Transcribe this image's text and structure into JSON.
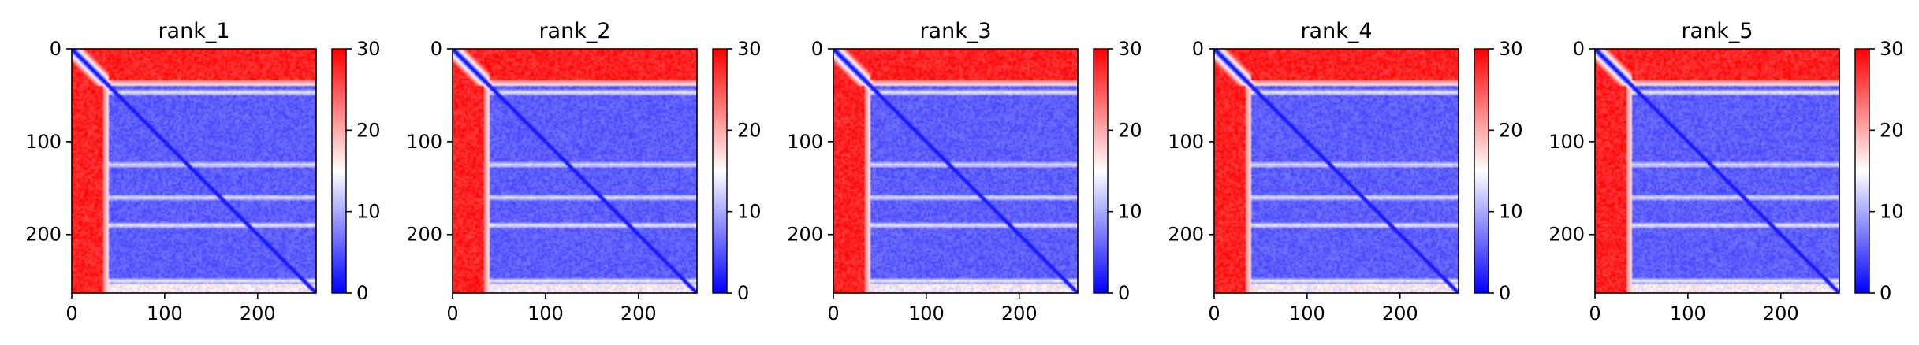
{
  "chart_data": [
    {
      "type": "heatmap",
      "title": "rank_1",
      "x_ticks": [
        0,
        100,
        200
      ],
      "y_ticks": [
        0,
        100,
        200
      ],
      "xlim": [
        0,
        263
      ],
      "ylim": [
        263,
        0
      ],
      "grid": false,
      "colorbar": {
        "min": 0,
        "max": 30,
        "ticks": [
          0,
          10,
          20,
          30
        ],
        "colormap": [
          "#0000ff",
          "#ffffff",
          "#ff0000"
        ]
      },
      "regions": {
        "disordered_end": 40,
        "structured_value": 4,
        "disordered_value": 30,
        "interstripe_rows": [
          47,
          125,
          160,
          190,
          250
        ]
      }
    },
    {
      "type": "heatmap",
      "title": "rank_2",
      "x_ticks": [
        0,
        100,
        200
      ],
      "y_ticks": [
        0,
        100,
        200
      ],
      "xlim": [
        0,
        263
      ],
      "ylim": [
        263,
        0
      ],
      "grid": false,
      "colorbar": {
        "min": 0,
        "max": 30,
        "ticks": [
          0,
          10,
          20,
          30
        ],
        "colormap": [
          "#0000ff",
          "#ffffff",
          "#ff0000"
        ]
      },
      "regions": {
        "disordered_end": 40,
        "structured_value": 4,
        "disordered_value": 30,
        "interstripe_rows": [
          47,
          125,
          160,
          190,
          250
        ]
      }
    },
    {
      "type": "heatmap",
      "title": "rank_3",
      "x_ticks": [
        0,
        100,
        200
      ],
      "y_ticks": [
        0,
        100,
        200
      ],
      "xlim": [
        0,
        263
      ],
      "ylim": [
        263,
        0
      ],
      "grid": false,
      "colorbar": {
        "min": 0,
        "max": 30,
        "ticks": [
          0,
          10,
          20,
          30
        ],
        "colormap": [
          "#0000ff",
          "#ffffff",
          "#ff0000"
        ]
      },
      "regions": {
        "disordered_end": 40,
        "structured_value": 4,
        "disordered_value": 30,
        "interstripe_rows": [
          47,
          125,
          160,
          190,
          250
        ]
      }
    },
    {
      "type": "heatmap",
      "title": "rank_4",
      "x_ticks": [
        0,
        100,
        200
      ],
      "y_ticks": [
        0,
        100,
        200
      ],
      "xlim": [
        0,
        263
      ],
      "ylim": [
        263,
        0
      ],
      "grid": false,
      "colorbar": {
        "min": 0,
        "max": 30,
        "ticks": [
          0,
          10,
          20,
          30
        ],
        "colormap": [
          "#0000ff",
          "#ffffff",
          "#ff0000"
        ]
      },
      "regions": {
        "disordered_end": 40,
        "structured_value": 4,
        "disordered_value": 30,
        "interstripe_rows": [
          47,
          125,
          160,
          190,
          250
        ]
      }
    },
    {
      "type": "heatmap",
      "title": "rank_5",
      "x_ticks": [
        0,
        100,
        200
      ],
      "y_ticks": [
        0,
        100,
        200
      ],
      "xlim": [
        0,
        263
      ],
      "ylim": [
        263,
        0
      ],
      "grid": false,
      "colorbar": {
        "min": 0,
        "max": 30,
        "ticks": [
          0,
          10,
          20,
          30
        ],
        "colormap": [
          "#0000ff",
          "#ffffff",
          "#ff0000"
        ]
      },
      "regions": {
        "disordered_end": 40,
        "structured_value": 4,
        "disordered_value": 30,
        "interstripe_rows": [
          47,
          125,
          160,
          190,
          250
        ]
      }
    }
  ]
}
